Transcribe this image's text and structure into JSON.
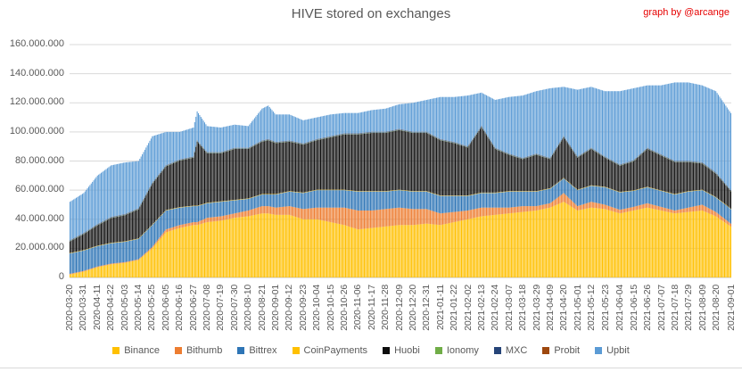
{
  "header": {
    "credit": "graph by @arcange",
    "credit_color": "#E60000"
  },
  "chart_data": {
    "type": "bar",
    "stacked": true,
    "title": "HIVE stored on exchanges",
    "xlabel": "",
    "ylabel": "",
    "y_unit": "HIVE",
    "values_unit": "millions of HIVE",
    "y_max_millions": 160,
    "grid": true,
    "legend_position": "bottom",
    "axis_text_color": "#595959",
    "grid_color": "#D9D9D9",
    "baseline_color": "#BFBFBF",
    "y_tick_labels": [
      "160.000.000",
      "140.000.000",
      "120.000.000",
      "100.000.000",
      "80.000.000",
      "60.000.000",
      "40.000.000",
      "20.000.000",
      "0"
    ],
    "x_tick_labels": [
      "2020-03-20",
      "2020-03-31",
      "2020-04-11",
      "2020-04-22",
      "2020-05-03",
      "2020-05-14",
      "2020-05-25",
      "2020-06-05",
      "2020-06-16",
      "2020-06-27",
      "2020-07-08",
      "2020-07-19",
      "2020-07-30",
      "2020-08-10",
      "2020-08-21",
      "2020-09-01",
      "2020-09-12",
      "2020-09-23",
      "2020-10-04",
      "2020-10-15",
      "2020-10-26",
      "2020-11-06",
      "2020-11-17",
      "2020-11-28",
      "2020-12-09",
      "2020-12-20",
      "2020-12-31",
      "2021-01-11",
      "2021-01-22",
      "2021-02-02",
      "2021-02-13",
      "2021-02-24",
      "2021-03-07",
      "2021-03-18",
      "2021-03-29",
      "2021-04-09",
      "2021-04-20",
      "2021-05-01",
      "2021-05-12",
      "2021-05-23",
      "2021-06-04",
      "2021-06-15",
      "2021-06-26",
      "2021-07-07",
      "2021-07-18",
      "2021-07-29",
      "2021-08-09",
      "2021-08-20",
      "2021-09-01"
    ],
    "series_order": [
      "Binance",
      "Bithumb",
      "Bittrex",
      "CoinPayments",
      "Huobi",
      "Ionomy",
      "MXC",
      "Probit",
      "Upbit"
    ],
    "series_colors": [
      "#FFC000",
      "#ED7D31",
      "#2E75B6",
      "#FFC000",
      "#0D0D0D",
      "#70AD47",
      "#264478",
      "#9E480E",
      "#5B9BD5"
    ],
    "anchors_note": "values are millions of HIVE per series, estimated from pixels; order follows series_order",
    "anchors": [
      {
        "date": "2020-03-20",
        "values": [
          2,
          0.5,
          14,
          0.3,
          8,
          0.2,
          0.5,
          0.1,
          26.4
        ]
      },
      {
        "date": "2020-03-31",
        "values": [
          4,
          0.5,
          14,
          0.3,
          11,
          0.2,
          0.5,
          0.1,
          27.4
        ]
      },
      {
        "date": "2020-04-11",
        "values": [
          7,
          0.5,
          14,
          0.3,
          14,
          0.2,
          0.5,
          0.1,
          33.4
        ]
      },
      {
        "date": "2020-04-22",
        "values": [
          9,
          0.5,
          14,
          0.3,
          17,
          0.2,
          0.5,
          0.1,
          35.4
        ]
      },
      {
        "date": "2020-05-03",
        "values": [
          10,
          0.5,
          14,
          0.3,
          18,
          0.2,
          0.5,
          0.1,
          35.4
        ]
      },
      {
        "date": "2020-05-14",
        "values": [
          12,
          0.5,
          14,
          0.3,
          20,
          0.2,
          0.5,
          0.1,
          32.4
        ]
      },
      {
        "date": "2020-05-25",
        "values": [
          20,
          1,
          15,
          0.3,
          28,
          0.2,
          0.5,
          0.1,
          31.9
        ]
      },
      {
        "date": "2020-06-05",
        "values": [
          31,
          2,
          13,
          0.3,
          30,
          0.2,
          0.5,
          0.1,
          22.9
        ]
      },
      {
        "date": "2020-06-16",
        "values": [
          34,
          2,
          12,
          0.3,
          32,
          0.2,
          0.5,
          0.1,
          18.9
        ]
      },
      {
        "date": "2020-06-27",
        "values": [
          36,
          2,
          11,
          0.3,
          33,
          0.2,
          0.5,
          0.1,
          19.9
        ]
      },
      {
        "date": "2020-06-30",
        "values": [
          36,
          2,
          11,
          0.3,
          44,
          0.2,
          0.5,
          0.1,
          20.0
        ]
      },
      {
        "date": "2020-07-08",
        "values": [
          38,
          3,
          10,
          0.3,
          34,
          0.2,
          0.5,
          0.1,
          17.9
        ]
      },
      {
        "date": "2020-07-19",
        "values": [
          39,
          3,
          10,
          0.3,
          33,
          0.2,
          0.5,
          0.1,
          16.9
        ]
      },
      {
        "date": "2020-07-30",
        "values": [
          41,
          3,
          9,
          0.3,
          35,
          0.2,
          0.5,
          0.1,
          15.9
        ]
      },
      {
        "date": "2020-08-10",
        "values": [
          42,
          4,
          8,
          0.3,
          34,
          0.2,
          0.5,
          0.1,
          14.9
        ]
      },
      {
        "date": "2020-08-21",
        "values": [
          44,
          5,
          8,
          0.3,
          36,
          0.2,
          0.5,
          0.1,
          21.9
        ]
      },
      {
        "date": "2020-08-26",
        "values": [
          44,
          5,
          8,
          0.3,
          37,
          0.2,
          0.5,
          0.1,
          23.0
        ]
      },
      {
        "date": "2020-09-01",
        "values": [
          43,
          5,
          9,
          0.3,
          35,
          0.2,
          0.5,
          0.1,
          18.9
        ]
      },
      {
        "date": "2020-09-12",
        "values": [
          43,
          6,
          10,
          0.3,
          34,
          0.2,
          0.5,
          0.1,
          17.9
        ]
      },
      {
        "date": "2020-09-23",
        "values": [
          40,
          7,
          11,
          0.3,
          33,
          0.2,
          0.5,
          0.1,
          15.9
        ]
      },
      {
        "date": "2020-10-04",
        "values": [
          40,
          8,
          12,
          0.3,
          34,
          0.2,
          0.5,
          0.1,
          14.9
        ]
      },
      {
        "date": "2020-10-15",
        "values": [
          38,
          10,
          12,
          0.3,
          36,
          0.2,
          0.5,
          0.1,
          14.9
        ]
      },
      {
        "date": "2020-10-26",
        "values": [
          36,
          12,
          12,
          0.3,
          38,
          0.2,
          0.5,
          0.1,
          13.9
        ]
      },
      {
        "date": "2020-11-06",
        "values": [
          33,
          13,
          13,
          0.3,
          39,
          0.2,
          0.5,
          0.1,
          13.9
        ]
      },
      {
        "date": "2020-11-17",
        "values": [
          34,
          12,
          13,
          0.3,
          40,
          0.2,
          0.5,
          0.1,
          14.9
        ]
      },
      {
        "date": "2020-11-28",
        "values": [
          35,
          12,
          12,
          0.3,
          40,
          0.2,
          0.5,
          0.1,
          15.9
        ]
      },
      {
        "date": "2020-12-09",
        "values": [
          36,
          12,
          12,
          0.3,
          41,
          0.2,
          0.5,
          0.1,
          16.9
        ]
      },
      {
        "date": "2020-12-20",
        "values": [
          36,
          11,
          12,
          0.3,
          40,
          0.2,
          0.5,
          0.1,
          19.9
        ]
      },
      {
        "date": "2020-12-31",
        "values": [
          37,
          10,
          12,
          0.3,
          40,
          0.2,
          0.5,
          0.1,
          21.9
        ]
      },
      {
        "date": "2021-01-11",
        "values": [
          36,
          8,
          12,
          0.3,
          38,
          0.2,
          0.5,
          0.1,
          28.9
        ]
      },
      {
        "date": "2021-01-22",
        "values": [
          38,
          7,
          11,
          0.3,
          36,
          0.2,
          0.5,
          0.1,
          30.9
        ]
      },
      {
        "date": "2021-02-02",
        "values": [
          40,
          6,
          10,
          0.3,
          33,
          0.2,
          0.5,
          0.1,
          34.9
        ]
      },
      {
        "date": "2021-02-13",
        "values": [
          42,
          6,
          10,
          0.3,
          45,
          0.2,
          0.5,
          0.1,
          22.9
        ]
      },
      {
        "date": "2021-02-24",
        "values": [
          43,
          5,
          10,
          0.3,
          30,
          0.2,
          0.5,
          0.1,
          32.9
        ]
      },
      {
        "date": "2021-03-07",
        "values": [
          44,
          4,
          11,
          0.3,
          25,
          0.2,
          0.5,
          0.1,
          38.9
        ]
      },
      {
        "date": "2021-03-18",
        "values": [
          45,
          4,
          10,
          0.3,
          22,
          0.2,
          0.5,
          0.1,
          42.9
        ]
      },
      {
        "date": "2021-03-29",
        "values": [
          46,
          3,
          10,
          0.3,
          25,
          0.2,
          0.5,
          0.1,
          42.9
        ]
      },
      {
        "date": "2021-04-09",
        "values": [
          48,
          3,
          10,
          0.3,
          20,
          0.2,
          0.5,
          0.1,
          47.9
        ]
      },
      {
        "date": "2021-04-20",
        "values": [
          52,
          6,
          10,
          0.3,
          28,
          0.2,
          0.5,
          0.1,
          33.9
        ]
      },
      {
        "date": "2021-05-01",
        "values": [
          46,
          3,
          11,
          0.3,
          22,
          0.2,
          0.5,
          0.1,
          45.9
        ]
      },
      {
        "date": "2021-05-12",
        "values": [
          48,
          4,
          11,
          0.3,
          25,
          0.2,
          0.5,
          0.1,
          41.9
        ]
      },
      {
        "date": "2021-05-23",
        "values": [
          47,
          3,
          12,
          0.3,
          20,
          0.2,
          0.5,
          0.1,
          44.9
        ]
      },
      {
        "date": "2021-06-04",
        "values": [
          44,
          2.5,
          12,
          0.3,
          18,
          0.2,
          0.5,
          0.1,
          50.4
        ]
      },
      {
        "date": "2021-06-15",
        "values": [
          46,
          2.5,
          11,
          0.3,
          20,
          0.2,
          0.5,
          0.1,
          49.4
        ]
      },
      {
        "date": "2021-06-26",
        "values": [
          48,
          3,
          11,
          0.3,
          26,
          0.2,
          0.5,
          0.1,
          42.9
        ]
      },
      {
        "date": "2021-07-07",
        "values": [
          46,
          2.5,
          11,
          0.3,
          24,
          0.2,
          0.5,
          0.1,
          47.4
        ]
      },
      {
        "date": "2021-07-18",
        "values": [
          44,
          2,
          11,
          0.3,
          22,
          0.2,
          0.5,
          0.1,
          53.9
        ]
      },
      {
        "date": "2021-07-29",
        "values": [
          45,
          3,
          11,
          0.3,
          20,
          0.2,
          0.5,
          0.1,
          53.9
        ]
      },
      {
        "date": "2021-08-09",
        "values": [
          46,
          4,
          10,
          0.3,
          18,
          0.2,
          0.5,
          0.1,
          52.9
        ]
      },
      {
        "date": "2021-08-20",
        "values": [
          42,
          3,
          10,
          0.3,
          16,
          0.2,
          0.5,
          0.1,
          55.9
        ]
      },
      {
        "date": "2021-09-01",
        "values": [
          35,
          2,
          10,
          0.3,
          12,
          0.2,
          0.5,
          0.1,
          52.9
        ]
      }
    ]
  }
}
